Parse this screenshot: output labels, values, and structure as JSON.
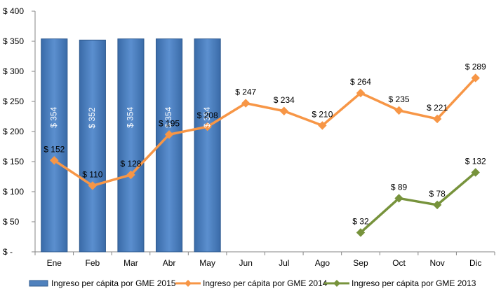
{
  "chart_data": {
    "type": "bar+line",
    "categories": [
      "Ene",
      "Feb",
      "Mar",
      "Abr",
      "May",
      "Jun",
      "Jul",
      "Ago",
      "Sep",
      "Oct",
      "Nov",
      "Dic"
    ],
    "ylim": [
      0,
      400
    ],
    "yticks": [
      0,
      50,
      100,
      150,
      200,
      250,
      300,
      350,
      400
    ],
    "ytick_labels": [
      "$ -",
      "$ 50",
      "$ 100",
      "$ 150",
      "$ 200",
      "$ 250",
      "$ 300",
      "$ 350",
      "$ 400"
    ],
    "grid": false,
    "legend_position": "bottom",
    "series": [
      {
        "name": "Ingreso per cápita por GME 2015",
        "kind": "bar",
        "color": "#4F81BD",
        "values": [
          354,
          352,
          354,
          354,
          354,
          null,
          null,
          null,
          null,
          null,
          null,
          null
        ],
        "labels": [
          "$ 354",
          "$ 352",
          "$ 354",
          "$ 354",
          "$ 354",
          null,
          null,
          null,
          null,
          null,
          null,
          null
        ]
      },
      {
        "name": "Ingreso per cápita por GME 2014",
        "kind": "line",
        "color": "#F79646",
        "values": [
          152,
          110,
          128,
          195,
          208,
          247,
          234,
          210,
          264,
          235,
          221,
          289
        ],
        "labels": [
          "$ 152",
          "$ 110",
          "$ 128",
          "$ 195",
          "$ 208",
          "$ 247",
          "$ 234",
          "$ 210",
          "$ 264",
          "$ 235",
          "$ 221",
          "$ 289"
        ]
      },
      {
        "name": "Ingreso per cápita por GME 2013",
        "kind": "line",
        "color": "#77933C",
        "values": [
          null,
          null,
          null,
          null,
          null,
          null,
          null,
          null,
          32,
          89,
          78,
          132
        ],
        "labels": [
          null,
          null,
          null,
          null,
          null,
          null,
          null,
          null,
          "$ 32",
          "$ 89",
          "$ 78",
          "$ 132"
        ]
      }
    ]
  }
}
